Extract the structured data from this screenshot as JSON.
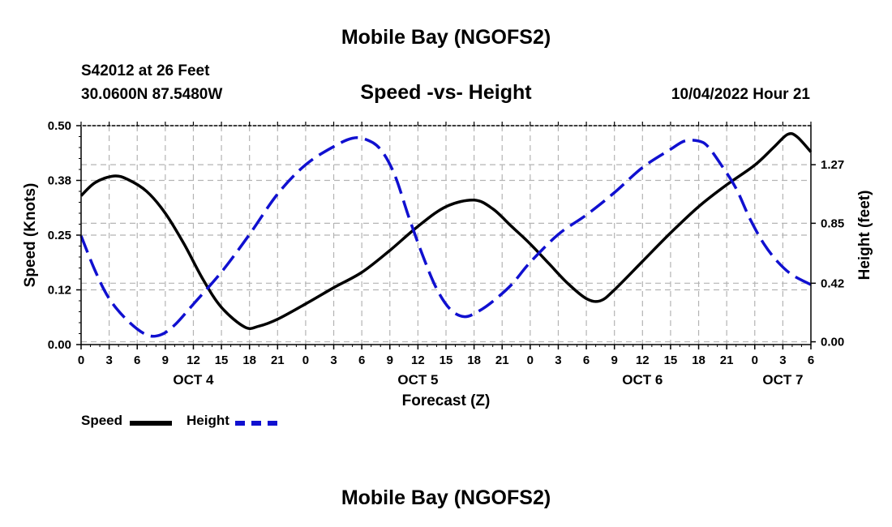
{
  "header": {
    "title": "Mobile Bay (NGOFS2)",
    "station": "S42012 at 26 Feet",
    "coords": "30.0600N  87.5480W",
    "subtitle": "Speed -vs- Height",
    "datetime": "10/04/2022 Hour 21"
  },
  "legend": {
    "speed_label": "Speed",
    "height_label": "Height"
  },
  "footer": {
    "title": "Mobile Bay (NGOFS2)"
  },
  "colors": {
    "speed": "#000000",
    "height": "#1010d0",
    "grid": "#b4b4b4"
  },
  "chart_data": {
    "type": "line",
    "title": "Speed -vs- Height",
    "xlabel": "Forecast (Z)",
    "ylabel": "Speed (Knots)",
    "y2label": "Height (feet)",
    "xlim": [
      0,
      78
    ],
    "ylim": [
      0,
      0.5
    ],
    "y2lim": [
      -0.02,
      1.55
    ],
    "x_ticks": [
      0,
      3,
      6,
      9,
      12,
      15,
      18,
      21,
      24,
      27,
      30,
      33,
      36,
      39,
      42,
      45,
      48,
      51,
      54,
      57,
      60,
      63,
      66,
      69,
      72,
      75,
      78
    ],
    "x_tick_labels": [
      "0",
      "3",
      "6",
      "9",
      "12",
      "15",
      "18",
      "21",
      "0",
      "3",
      "6",
      "9",
      "12",
      "15",
      "18",
      "21",
      "0",
      "3",
      "6",
      "9",
      "12",
      "15",
      "18",
      "21",
      "0",
      "3",
      "6"
    ],
    "day_labels": [
      {
        "x": 12,
        "label": "OCT 4"
      },
      {
        "x": 36,
        "label": "OCT 5"
      },
      {
        "x": 60,
        "label": "OCT 6"
      },
      {
        "x": 75,
        "label": "OCT 7"
      }
    ],
    "y_ticks": [
      0,
      0.125,
      0.25,
      0.375,
      0.5
    ],
    "y_tick_labels": [
      "0.00",
      "0.12",
      "0.25",
      "0.38",
      "0.50"
    ],
    "y2_ticks": [
      0,
      0.42,
      0.85,
      1.27
    ],
    "y2_tick_labels": [
      "0.00",
      "0.42",
      "0.85",
      "1.27"
    ],
    "grid": true,
    "legend_position": "bottom-left",
    "series": [
      {
        "name": "Speed",
        "axis": "left",
        "style": "solid",
        "x": [
          0,
          1.5,
          3.5,
          5,
          7,
          9,
          11,
          13,
          15,
          17.5,
          19,
          21,
          24,
          27,
          30,
          33,
          36,
          39,
          42,
          44,
          46,
          48,
          50,
          52,
          54,
          55.5,
          57,
          60,
          63,
          66,
          69,
          72,
          74,
          75.5,
          76.5,
          78
        ],
        "values": [
          0.34,
          0.37,
          0.385,
          0.377,
          0.35,
          0.3,
          0.23,
          0.15,
          0.085,
          0.04,
          0.042,
          0.058,
          0.093,
          0.13,
          0.165,
          0.215,
          0.27,
          0.315,
          0.33,
          0.31,
          0.27,
          0.23,
          0.185,
          0.14,
          0.105,
          0.1,
          0.125,
          0.19,
          0.255,
          0.315,
          0.365,
          0.41,
          0.45,
          0.48,
          0.475,
          0.44
        ]
      },
      {
        "name": "Height",
        "axis": "right",
        "style": "dashed",
        "x": [
          0,
          1.5,
          3,
          5,
          7,
          8.5,
          10,
          12,
          15,
          18,
          21,
          24,
          27,
          29,
          30.5,
          32,
          33.5,
          35,
          36.5,
          38,
          39.5,
          41,
          42.5,
          44,
          46,
          48,
          51,
          54,
          57,
          60,
          63,
          64.5,
          66,
          67,
          68.5,
          70,
          71.5,
          73,
          74.5,
          76,
          78
        ],
        "values": [
          0.76,
          0.51,
          0.31,
          0.15,
          0.05,
          0.05,
          0.12,
          0.27,
          0.5,
          0.77,
          1.06,
          1.27,
          1.4,
          1.46,
          1.45,
          1.38,
          1.2,
          0.9,
          0.62,
          0.38,
          0.23,
          0.18,
          0.22,
          0.29,
          0.41,
          0.57,
          0.77,
          0.91,
          1.07,
          1.25,
          1.38,
          1.44,
          1.44,
          1.4,
          1.26,
          1.1,
          0.88,
          0.7,
          0.57,
          0.48,
          0.41
        ]
      }
    ]
  }
}
